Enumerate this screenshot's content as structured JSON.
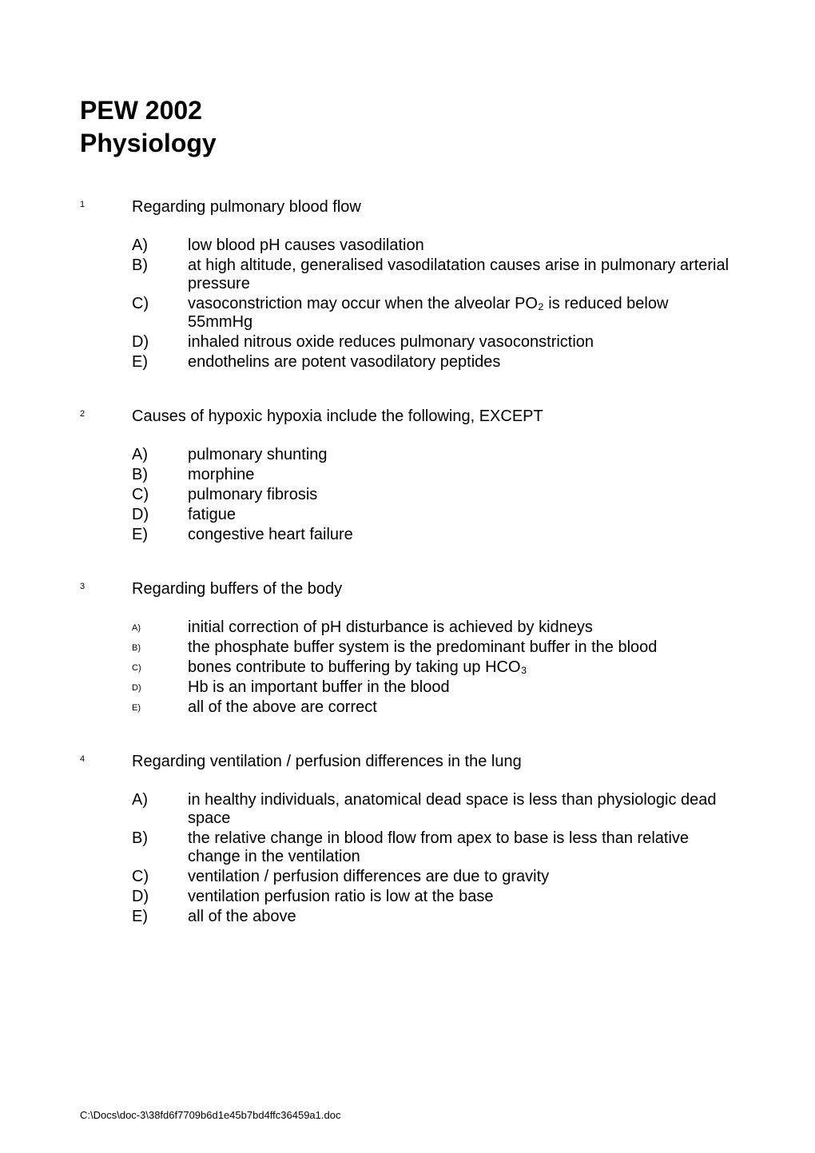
{
  "header": {
    "title": "PEW 2002",
    "subtitle": "Physiology"
  },
  "questions": [
    {
      "number": "1",
      "text": "Regarding pulmonary blood flow",
      "label_style": "normal",
      "options": [
        {
          "label": "A)",
          "text": "low blood pH causes vasodilation"
        },
        {
          "label": "B)",
          "text": "at high altitude, generalised vasodilatation causes arise in pulmonary arterial pressure"
        },
        {
          "label": "C)",
          "text": "vasoconstriction may occur when the alveolar PO₂ is reduced below 55mmHg"
        },
        {
          "label": "D)",
          "text": "inhaled nitrous oxide reduces pulmonary vasoconstriction"
        },
        {
          "label": "E)",
          "text": "endothelins are potent vasodilatory peptides"
        }
      ]
    },
    {
      "number": "2",
      "text": "Causes of hypoxic hypoxia include the following, EXCEPT",
      "label_style": "normal",
      "options": [
        {
          "label": "A)",
          "text": "pulmonary shunting"
        },
        {
          "label": "B)",
          "text": "morphine"
        },
        {
          "label": "C)",
          "text": "pulmonary fibrosis"
        },
        {
          "label": "D)",
          "text": "fatigue"
        },
        {
          "label": "E)",
          "text": "congestive heart failure"
        }
      ]
    },
    {
      "number": "3",
      "text": "Regarding buffers of the body",
      "label_style": "small",
      "options": [
        {
          "label": "A)",
          "text": "initial correction of pH disturbance is achieved by kidneys"
        },
        {
          "label": "B)",
          "text": "the phosphate buffer system is the predominant buffer in the blood"
        },
        {
          "label": "C)",
          "text": "bones contribute to buffering by taking up HCO₃"
        },
        {
          "label": "D)",
          "text": "Hb is an important buffer in the blood"
        },
        {
          "label": "E)",
          "text": "all of the above are correct"
        }
      ]
    },
    {
      "number": "4",
      "text": "Regarding ventilation / perfusion differences in the lung",
      "label_style": "normal",
      "options": [
        {
          "label": "A)",
          "text": "in healthy individuals, anatomical dead space is less than physiologic dead space"
        },
        {
          "label": "B)",
          "text": "the relative change in blood flow from apex to base is less than relative change in the ventilation"
        },
        {
          "label": "C)",
          "text": "ventilation / perfusion differences are due to gravity"
        },
        {
          "label": "D)",
          "text": "ventilation perfusion ratio is low at the base"
        },
        {
          "label": "E)",
          "text": "all of the above"
        }
      ]
    }
  ],
  "footer": {
    "path": "C:\\Docs\\doc-3\\38fd6f7709b6d1e45b7bd4ffc36459a1.doc"
  },
  "styles": {
    "body_bg": "#ffffff",
    "title_fontsize": 32,
    "question_fontsize": 20,
    "superscript_fontsize": 11,
    "footer_fontsize": 13,
    "text_color": "#000000"
  }
}
